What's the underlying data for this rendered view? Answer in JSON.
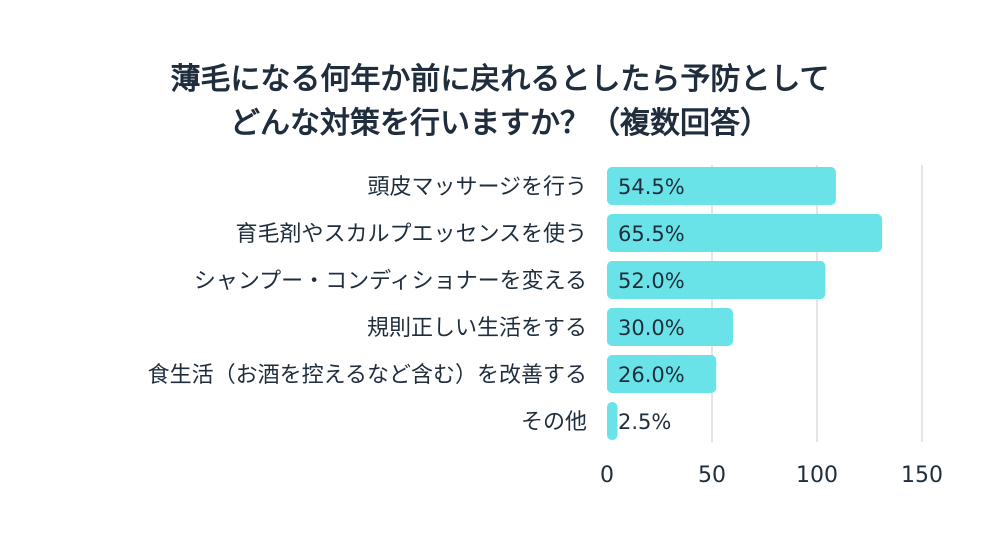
{
  "chart_data": {
    "type": "bar",
    "orientation": "horizontal",
    "title_lines": [
      "薄毛になる何年か前に戻れるとしたら予防として",
      "どんな対策を行いますか？（複数回答）"
    ],
    "categories": [
      "頭皮マッサージを行う",
      "育毛剤やスカルプエッセンスを使う",
      "シャンプー・コンディショナーを変える",
      "規則正しい生活をする",
      "食生活（お酒を控えるなど含む）を改善する",
      "その他"
    ],
    "values": [
      109,
      131,
      104,
      60,
      52,
      5
    ],
    "value_labels": [
      "54.5%",
      "65.5%",
      "52.0%",
      "30.0%",
      "26.0%",
      "2.5%"
    ],
    "xlim": [
      0,
      150
    ],
    "xticks": [
      0,
      50,
      100,
      150
    ],
    "grid": true,
    "bar_color": "#6ae3e8",
    "grid_color": "#d9dde2",
    "text_color": "#1f2d3d"
  }
}
